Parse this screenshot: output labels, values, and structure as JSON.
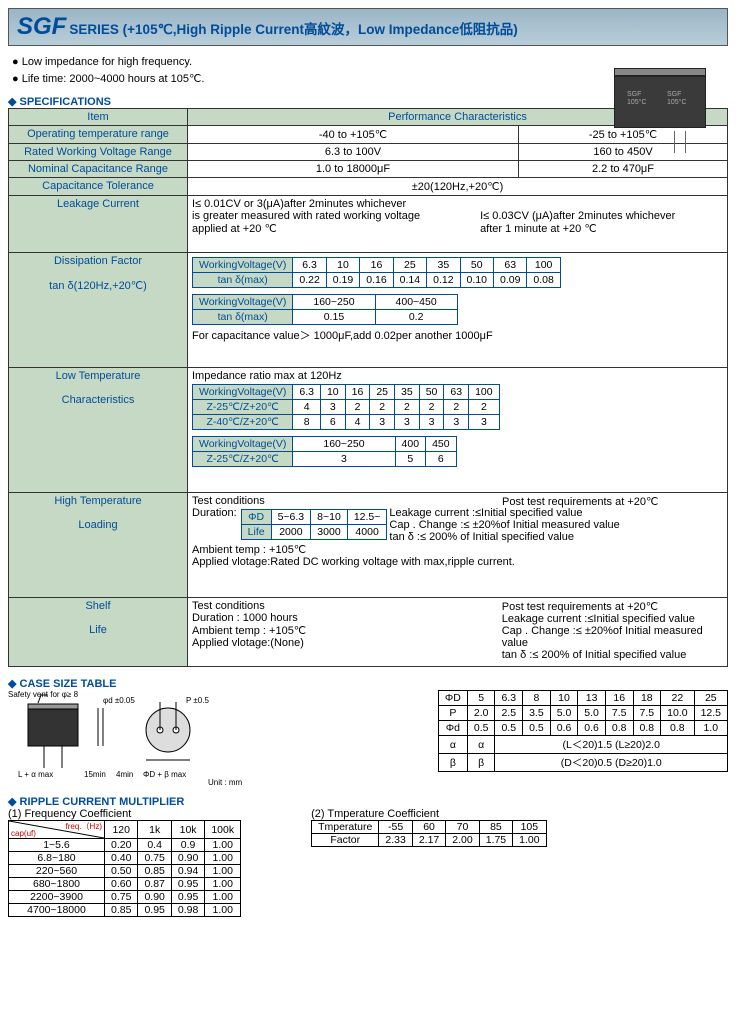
{
  "header": {
    "main": "SGF",
    "sub": "SERIES (+105℃,High Ripple Current高紋波，Low Impedance低阻抗品)"
  },
  "capImg": {
    "l1": "SGF",
    "l2": "105°C",
    "l3": "SGF",
    "l4": "105°C"
  },
  "bullets": [
    "Low impedance for high frequency.",
    "Life time: 2000~4000 hours at 105℃."
  ],
  "sec": {
    "specs": "SPECIFICATIONS",
    "case": "CASE SIZE TABLE",
    "ripple": "RIPPLE CURRENT MULTIPLIER"
  },
  "specHdr": {
    "item": "Item",
    "perf": "Performance Characteristics"
  },
  "rows": {
    "r1": {
      "lbl": "Operating  temperature range",
      "a": "-40 to +105℃",
      "b": "-25 to +105℃"
    },
    "r2": {
      "lbl": "Rated Working Voltage Range",
      "a": "6.3 to 100V",
      "b": "160 to 450V"
    },
    "r3": {
      "lbl": "Nominal Capacitance Range",
      "a": "1.0 to 18000μF",
      "b": "2.2 to 470μF"
    },
    "r4": {
      "lbl": "Capacitance Tolerance",
      "a": "±20(120Hz,+20℃)"
    },
    "leak": {
      "lbl": "Leakage Current",
      "l1": "I≤ 0.01CV or 3(μA)after 2minutes whichever",
      "l2": "is greater measured with rated working voltage",
      "l3": "applied at +20 ℃",
      "r1": "I≤ 0.03CV  (μA)after 2minutes whichever",
      "r2": "after 1 minute at +20 ℃"
    },
    "diss": {
      "lbl1": "Dissipation Factor",
      "lbl2": "tan δ(120Hz,+20℃)",
      "note": "For capacitance value＞ 1000μF,add 0.02per another 1000μF"
    },
    "low": {
      "lbl1": "Low Temperature",
      "lbl2": "Characteristics",
      "note": "Impedance ratio max at 120Hz"
    },
    "high": {
      "lbl1": "High Temperature",
      "lbl2": "Loading",
      "tc": "Test conditions",
      "dur": "Duration:",
      "at": "Ambient temp    : +105℃",
      "av": "Applied vlotage:Rated DC working voltage with max,ripple current.",
      "pt": "Post test requirements at +20℃",
      "p1": "Leakage current :≤Initial specified value",
      "p2": "Cap . Change :≤ ±20%of Initial measured value",
      "p3": "tan δ                :≤ 200% of Initial specified value"
    },
    "shelf": {
      "lbl1": "Shelf",
      "lbl2": "Life",
      "tc": "Test conditions",
      "d": "Duration          : 1000 hours",
      "at": "Ambient temp    : +105℃",
      "av": "Applied vlotage:(None)",
      "pt": "Post test requirements at +20℃",
      "p1": "Leakage current :≤Initial specified value",
      "p2": "Cap . Change :≤ ±20%of Initial measured value",
      "p3": "tan δ                :≤ 200% of Initial specified value"
    }
  },
  "diss1": {
    "h": "WorkingVoltage(V)",
    "r": "tan δ(max)",
    "v": [
      "6.3",
      "10",
      "16",
      "25",
      "35",
      "50",
      "63",
      "100"
    ],
    "d": [
      "0.22",
      "0.19",
      "0.16",
      "0.14",
      "0.12",
      "0.10",
      "0.09",
      "0.08"
    ]
  },
  "diss2": {
    "h": "WorkingVoltage(V)",
    "r": "tan δ(max)",
    "v": [
      "160~250",
      "400~450"
    ],
    "d": [
      "0.15",
      "0.2"
    ]
  },
  "low1": {
    "h": "WorkingVoltage(V)",
    "r1": "Z-25℃/Z+20℃",
    "r2": "Z-40℃/Z+20℃",
    "v": [
      "6.3",
      "10",
      "16",
      "25",
      "35",
      "50",
      "63",
      "100"
    ],
    "d1": [
      "4",
      "3",
      "2",
      "2",
      "2",
      "2",
      "2",
      "2"
    ],
    "d2": [
      "8",
      "6",
      "4",
      "3",
      "3",
      "3",
      "3",
      "3"
    ]
  },
  "low2": {
    "h": "WorkingVoltage(V)",
    "r1": "Z-25℃/Z+20℃",
    "v": [
      "160~250",
      "400",
      "450"
    ],
    "d1": [
      "3",
      "5",
      "6"
    ]
  },
  "highTbl": {
    "h1": "ΦD",
    "h2": "Life",
    "v1": [
      "5~6.3",
      "8~10",
      "12.5~"
    ],
    "v2": [
      "2000",
      "3000",
      "4000"
    ]
  },
  "caseNote": {
    "sv": "Safety vent for φ≥ 8",
    "pd": "φd ±0.05",
    "pp": "P ±0.5",
    "la": "L + α max",
    "m15": "15min",
    "m4": "4min",
    "db": "ΦD + β max",
    "unit": "Unit : mm"
  },
  "caseTbl": {
    "h": [
      "ΦD",
      "5",
      "6.3",
      "8",
      "10",
      "13",
      "16",
      "18",
      "22",
      "25"
    ],
    "r1": [
      "P",
      "2.0",
      "2.5",
      "3.5",
      "5.0",
      "5.0",
      "7.5",
      "7.5",
      "10.0",
      "12.5"
    ],
    "r2": [
      "Φd",
      "0.5",
      "0.5",
      "0.5",
      "0.6",
      "0.6",
      "0.8",
      "0.8",
      "0.8",
      "1.0"
    ],
    "r3": [
      "α",
      "α"
    ],
    "r3b": "(L＜20)1.5    (L≥20)2.0",
    "r4": [
      "β",
      "β"
    ],
    "r4b": "(D＜20)0.5    (D≥20)1.0"
  },
  "rip": {
    "f1": "(1) Frequency Coefficient",
    "f2": "(2) Tmperature Coefficient",
    "dh1": "freq.（Hz)",
    "dh2": "cap(uf)"
  },
  "freq": {
    "h": [
      "120",
      "1k",
      "10k",
      "100k"
    ],
    "rows": [
      {
        "l": "1~5.6",
        "v": [
          "0.20",
          "0.4",
          "0.9",
          "1.00"
        ]
      },
      {
        "l": "6.8~180",
        "v": [
          "0.40",
          "0.75",
          "0.90",
          "1.00"
        ]
      },
      {
        "l": "220~560",
        "v": [
          "0.50",
          "0.85",
          "0.94",
          "1.00"
        ]
      },
      {
        "l": "680~1800",
        "v": [
          "0.60",
          "0.87",
          "0.95",
          "1.00"
        ]
      },
      {
        "l": "2200~3900",
        "v": [
          "0.75",
          "0.90",
          "0.95",
          "1.00"
        ]
      },
      {
        "l": "4700~18000",
        "v": [
          "0.85",
          "0.95",
          "0.98",
          "1.00"
        ]
      }
    ]
  },
  "temp": {
    "h": [
      "Tmperature",
      "-55",
      "60",
      "70",
      "85",
      "105"
    ],
    "r": [
      "Factor",
      "2.33",
      "2.17",
      "2.00",
      "1.75",
      "1.00"
    ]
  }
}
